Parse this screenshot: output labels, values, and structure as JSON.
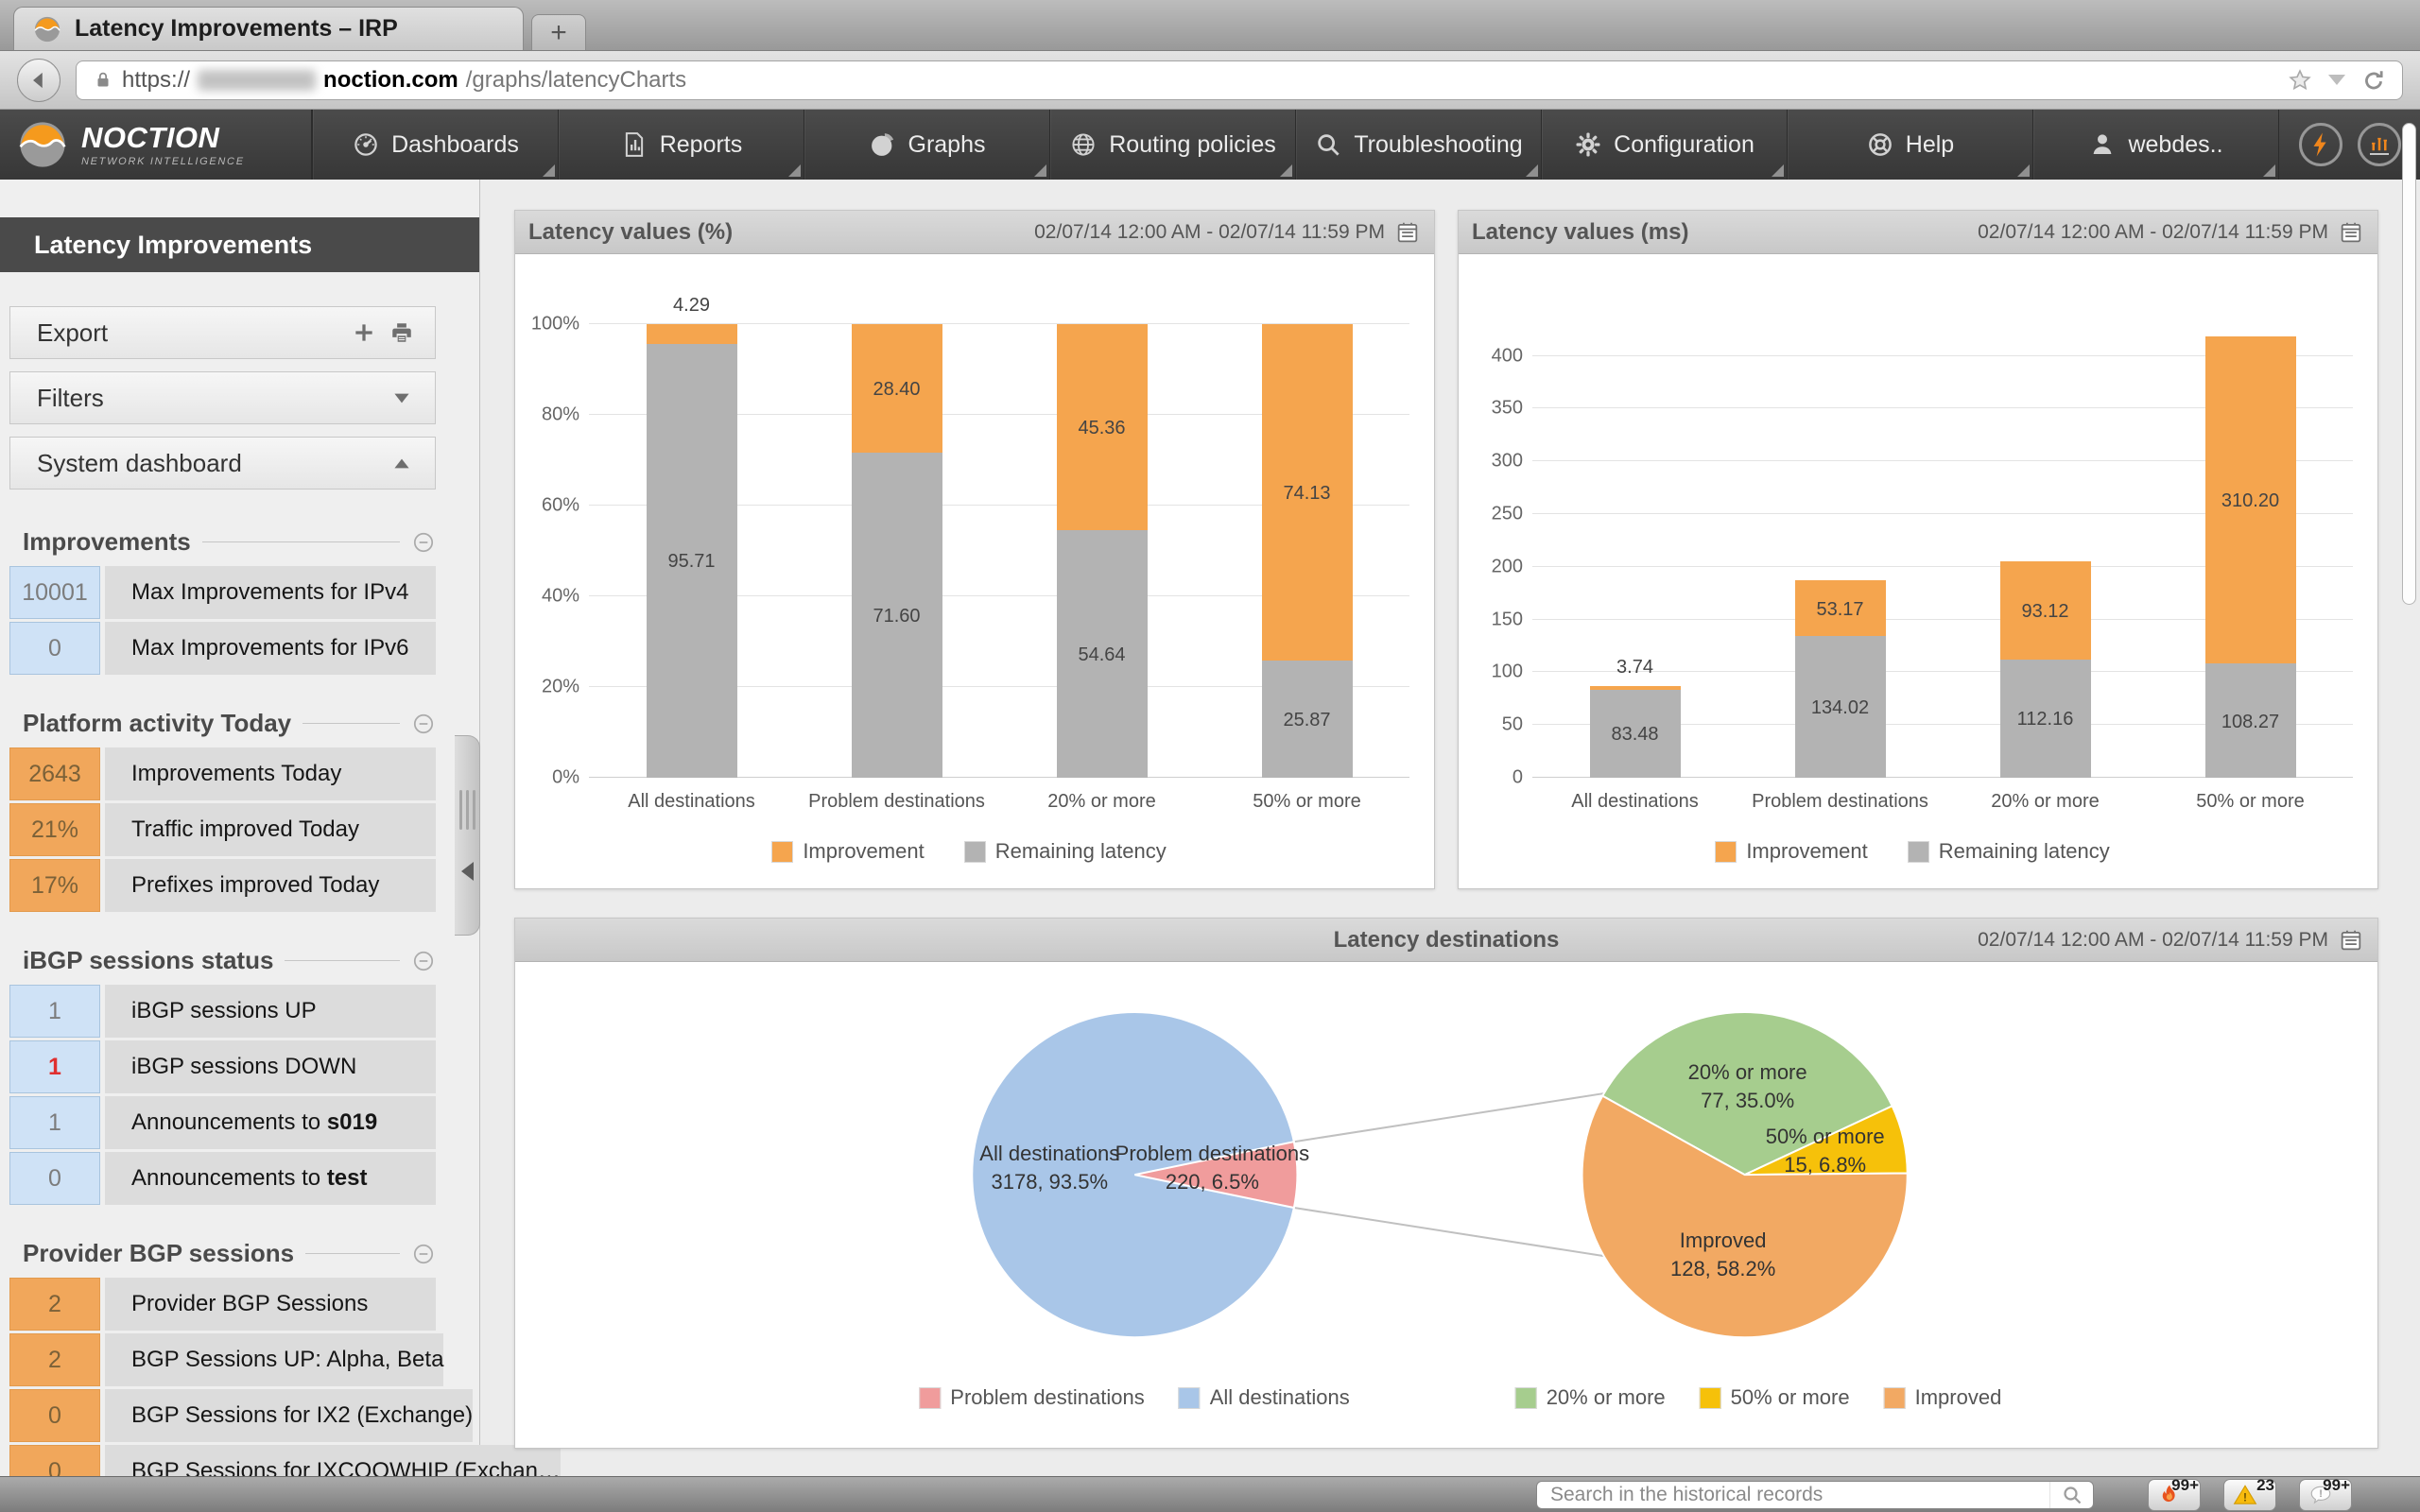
{
  "browser": {
    "tab_title": "Latency Improvements – IRP",
    "new_tab": "+",
    "url": {
      "scheme": "https://",
      "host": "noction.com",
      "path": "/graphs/latencyCharts"
    }
  },
  "nav": {
    "brand": {
      "name": "NOCTION",
      "tagline": "NETWORK INTELLIGENCE"
    },
    "items": [
      {
        "label": "Dashboards",
        "icon": "gauge"
      },
      {
        "label": "Reports",
        "icon": "report"
      },
      {
        "label": "Graphs",
        "icon": "pie"
      },
      {
        "label": "Routing policies",
        "icon": "globe"
      },
      {
        "label": "Troubleshooting",
        "icon": "magnifier"
      },
      {
        "label": "Configuration",
        "icon": "gear"
      },
      {
        "label": "Help",
        "icon": "lifering"
      },
      {
        "label": "webdes..",
        "icon": "person"
      }
    ],
    "quick_icons": [
      {
        "name": "events",
        "icon": "lightning"
      },
      {
        "name": "performance",
        "icon": "perf"
      }
    ]
  },
  "sidebar": {
    "title": "Latency Improvements",
    "panels": [
      {
        "label": "Export",
        "icons": [
          "plus",
          "printer"
        ]
      },
      {
        "label": "Filters",
        "icons": [
          "chevron-down"
        ]
      },
      {
        "label": "System dashboard",
        "icons": [
          "chevron-up"
        ]
      }
    ],
    "sections": [
      {
        "title": "Improvements",
        "rows": [
          {
            "value": "10001",
            "label": "Max Improvements for IPv4",
            "badge": "blue"
          },
          {
            "value": "0",
            "label": "Max Improvements for IPv6",
            "badge": "blue"
          }
        ]
      },
      {
        "title": "Platform activity Today",
        "rows": [
          {
            "value": "2643",
            "label": "Improvements Today",
            "badge": "orange"
          },
          {
            "value": "21%",
            "label": "Traffic improved Today",
            "badge": "orange"
          },
          {
            "value": "17%",
            "label": "Prefixes improved Today",
            "badge": "orange"
          }
        ]
      },
      {
        "title": "iBGP sessions status",
        "rows": [
          {
            "value": "1",
            "label": "iBGP sessions UP",
            "badge": "blue"
          },
          {
            "value": "1",
            "label": "iBGP sessions DOWN",
            "badge": "blue",
            "alert": true
          },
          {
            "value": "1",
            "label": "Announcements to ",
            "label_bold": "s019",
            "badge": "blue"
          },
          {
            "value": "0",
            "label": "Announcements to ",
            "label_bold": "test",
            "badge": "blue"
          }
        ]
      },
      {
        "title": "Provider BGP sessions",
        "rows": [
          {
            "value": "2",
            "label": "Provider BGP Sessions",
            "badge": "orange"
          },
          {
            "value": "2",
            "label": "BGP Sessions UP: Alpha, Beta",
            "badge": "orange"
          },
          {
            "value": "0",
            "label": "BGP Sessions for IX2 (Exchange)",
            "badge": "orange"
          },
          {
            "value": "0",
            "label": "BGP Sessions for IXCOOWHIP (Exchan…",
            "badge": "orange"
          }
        ]
      }
    ]
  },
  "chart_data": [
    {
      "type": "bar",
      "variant": "stacked",
      "title": "Latency values (%)",
      "date_range": "02/07/14 12:00 AM - 02/07/14 11:59 PM",
      "categories": [
        "All destinations",
        "Problem destinations",
        "20% or more",
        "50% or more"
      ],
      "series": [
        {
          "name": "Improvement",
          "color": "#f5a54e",
          "values": [
            4.29,
            28.4,
            45.36,
            74.13
          ]
        },
        {
          "name": "Remaining latency",
          "color": "#b3b3b3",
          "values": [
            95.71,
            71.6,
            54.64,
            25.87
          ]
        }
      ],
      "ylim": [
        0,
        100
      ],
      "yticks": [
        0,
        20,
        40,
        60,
        80,
        100
      ],
      "tick_suffix": "%",
      "grid": true,
      "legend_position": "bottom"
    },
    {
      "type": "bar",
      "variant": "stacked",
      "title": "Latency values (ms)",
      "date_range": "02/07/14 12:00 AM - 02/07/14 11:59 PM",
      "categories": [
        "All destinations",
        "Problem destinations",
        "20% or more",
        "50% or more"
      ],
      "series": [
        {
          "name": "Improvement",
          "color": "#f5a54e",
          "values": [
            3.74,
            53.17,
            93.12,
            310.2
          ]
        },
        {
          "name": "Remaining latency",
          "color": "#b3b3b3",
          "values": [
            83.48,
            134.02,
            112.16,
            108.27
          ]
        }
      ],
      "ylim": [
        0,
        430
      ],
      "yticks": [
        0,
        50,
        100,
        150,
        200,
        250,
        300,
        350,
        400
      ],
      "tick_suffix": "",
      "grid": true,
      "legend_position": "bottom"
    },
    {
      "type": "pie",
      "title": "Latency destinations",
      "date_range": "02/07/14 12:00 AM - 02/07/14 11:59 PM",
      "pies": [
        {
          "name": "destinations",
          "slices": [
            {
              "label": "All destinations",
              "value": 3178,
              "pct": 93.5,
              "color": "#a9c6e8"
            },
            {
              "label": "Problem destinations",
              "value": 220,
              "pct": 6.5,
              "color": "#f09c9c"
            }
          ]
        },
        {
          "name": "problem-breakdown",
          "slices": [
            {
              "label": "20% or more",
              "value": 77,
              "pct": 35.0,
              "color": "#a6cd8e"
            },
            {
              "label": "50% or more",
              "value": 15,
              "pct": 6.8,
              "color": "#f6c10a"
            },
            {
              "label": "Improved",
              "value": 128,
              "pct": 58.2,
              "color": "#f2a963"
            }
          ]
        }
      ],
      "legends": [
        [
          {
            "label": "Problem destinations",
            "color": "#f09c9c"
          },
          {
            "label": "All destinations",
            "color": "#a9c6e8"
          }
        ],
        [
          {
            "label": "20% or more",
            "color": "#a6cd8e"
          },
          {
            "label": "50% or more",
            "color": "#f6c10a"
          },
          {
            "label": "Improved",
            "color": "#f2a963"
          }
        ]
      ]
    }
  ],
  "bottom_bar": {
    "search_placeholder": "Search in the historical records",
    "buttons": [
      {
        "name": "hot-events",
        "icon": "flame",
        "badge": "99+"
      },
      {
        "name": "warnings",
        "icon": "warning",
        "badge": "23"
      },
      {
        "name": "notifications",
        "icon": "bubble",
        "badge": "99+"
      }
    ]
  }
}
